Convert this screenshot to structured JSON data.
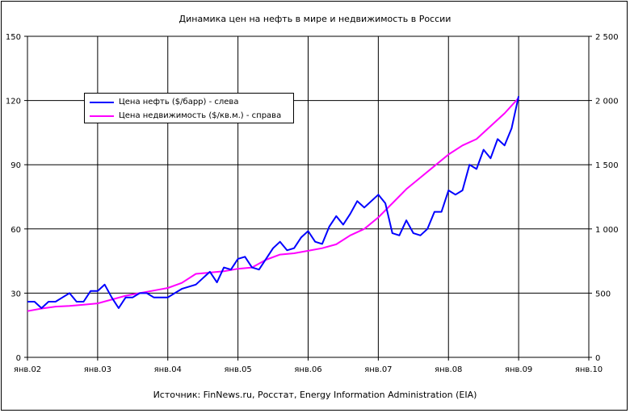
{
  "chart_data": {
    "type": "line",
    "title": "Динамика цен на нефть в мире и недвижимость в России",
    "source_note": "Источник: FinNews.ru, Росстат, Energy Information Administration (EIA)",
    "x_tick_labels": [
      "янв.02",
      "янв.03",
      "янв.04",
      "янв.05",
      "янв.06",
      "янв.07",
      "янв.08",
      "янв.09",
      "янв.10"
    ],
    "x_range": [
      2002.0,
      2010.0
    ],
    "y_left": {
      "range": [
        0,
        150
      ],
      "ticks": [
        "0",
        "30",
        "60",
        "90",
        "120",
        "150"
      ],
      "tick_values": [
        0,
        30,
        60,
        90,
        120,
        150
      ]
    },
    "y_right": {
      "range": [
        0,
        2500
      ],
      "ticks": [
        "0",
        "500",
        "1 000",
        "1 500",
        "2 000",
        "2 500"
      ],
      "tick_values": [
        0,
        500,
        1000,
        1500,
        2000,
        2500
      ]
    },
    "grid": true,
    "legend_position": "top-left",
    "series": [
      {
        "name": "Цена нефть ($/барр) - слева",
        "axis": "left",
        "color": "#0000ff",
        "x": [
          2002.0,
          2002.1,
          2002.2,
          2002.3,
          2002.4,
          2002.5,
          2002.6,
          2002.7,
          2002.8,
          2002.9,
          2003.0,
          2003.1,
          2003.2,
          2003.3,
          2003.4,
          2003.5,
          2003.6,
          2003.7,
          2003.8,
          2003.9,
          2004.0,
          2004.1,
          2004.2,
          2004.3,
          2004.4,
          2004.5,
          2004.6,
          2004.7,
          2004.8,
          2004.9,
          2005.0,
          2005.1,
          2005.2,
          2005.3,
          2005.4,
          2005.5,
          2005.6,
          2005.7,
          2005.8,
          2005.9,
          2006.0,
          2006.1,
          2006.2,
          2006.3,
          2006.4,
          2006.5,
          2006.6,
          2006.7,
          2006.8,
          2006.9,
          2007.0,
          2007.1,
          2007.2,
          2007.3,
          2007.4,
          2007.5,
          2007.6,
          2007.7,
          2007.8,
          2007.9,
          2008.0,
          2008.1,
          2008.2,
          2008.3,
          2008.4,
          2008.5,
          2008.6,
          2008.7,
          2008.8,
          2008.9,
          2009.0
        ],
        "values": [
          26,
          26,
          23,
          26,
          26,
          28,
          30,
          26,
          26,
          31,
          31,
          34,
          28,
          23,
          28,
          28,
          30,
          30,
          28,
          28,
          28,
          30,
          32,
          33,
          34,
          37,
          40,
          35,
          42,
          41,
          46,
          47,
          42,
          41,
          46,
          51,
          54,
          50,
          51,
          56,
          59,
          54,
          53,
          61,
          66,
          62,
          67,
          73,
          70,
          73,
          76,
          72,
          58,
          57,
          64,
          58,
          57,
          60,
          68,
          68,
          78,
          76,
          78,
          90,
          88,
          97,
          93,
          102,
          99,
          107,
          122
        ]
      },
      {
        "name": "Цена недвижимость ($/кв.м.) - справа",
        "axis": "right",
        "color": "#ff00ff",
        "x": [
          2002.0,
          2002.2,
          2002.4,
          2002.6,
          2002.8,
          2003.0,
          2003.2,
          2003.4,
          2003.6,
          2003.8,
          2004.0,
          2004.2,
          2004.4,
          2004.6,
          2004.8,
          2005.0,
          2005.2,
          2005.4,
          2005.6,
          2005.8,
          2006.0,
          2006.2,
          2006.4,
          2006.6,
          2006.8,
          2007.0,
          2007.2,
          2007.4,
          2007.6,
          2007.8,
          2008.0,
          2008.2,
          2008.4,
          2008.6,
          2008.8,
          2009.0
        ],
        "values": [
          360,
          380,
          395,
          400,
          410,
          420,
          450,
          480,
          500,
          520,
          540,
          580,
          650,
          660,
          670,
          690,
          700,
          760,
          800,
          810,
          830,
          850,
          880,
          950,
          1000,
          1090,
          1200,
          1310,
          1400,
          1490,
          1580,
          1650,
          1700,
          1800,
          1900,
          2020
        ]
      }
    ]
  }
}
